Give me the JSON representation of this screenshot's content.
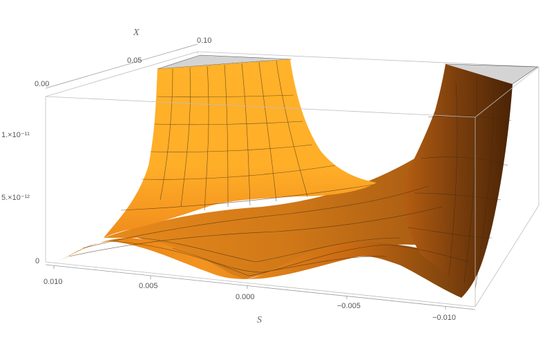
{
  "chart_data": {
    "type": "surface3d",
    "title": "",
    "xlabel": "S",
    "ylabel": "X",
    "zlabel": "",
    "x_ticks": [
      "0.010",
      "0.005",
      "0.000",
      "−0.005",
      "−0.010"
    ],
    "y_ticks": [
      "0.00",
      "0.05",
      "0.10"
    ],
    "z_ticks": [
      "0",
      "5.×10⁻¹²",
      "1.×10⁻¹¹"
    ],
    "x_range": [
      0.01,
      -0.01
    ],
    "y_range": [
      0.0,
      0.1
    ],
    "z_range": [
      0,
      1.3e-11
    ],
    "grid": false,
    "colors": {
      "surface_light": "#ffb52a",
      "surface_mid": "#f0901a",
      "surface_dark": "#5a2e08",
      "box": "#bdbdbd",
      "clip_top": "#d4d4d4"
    }
  }
}
